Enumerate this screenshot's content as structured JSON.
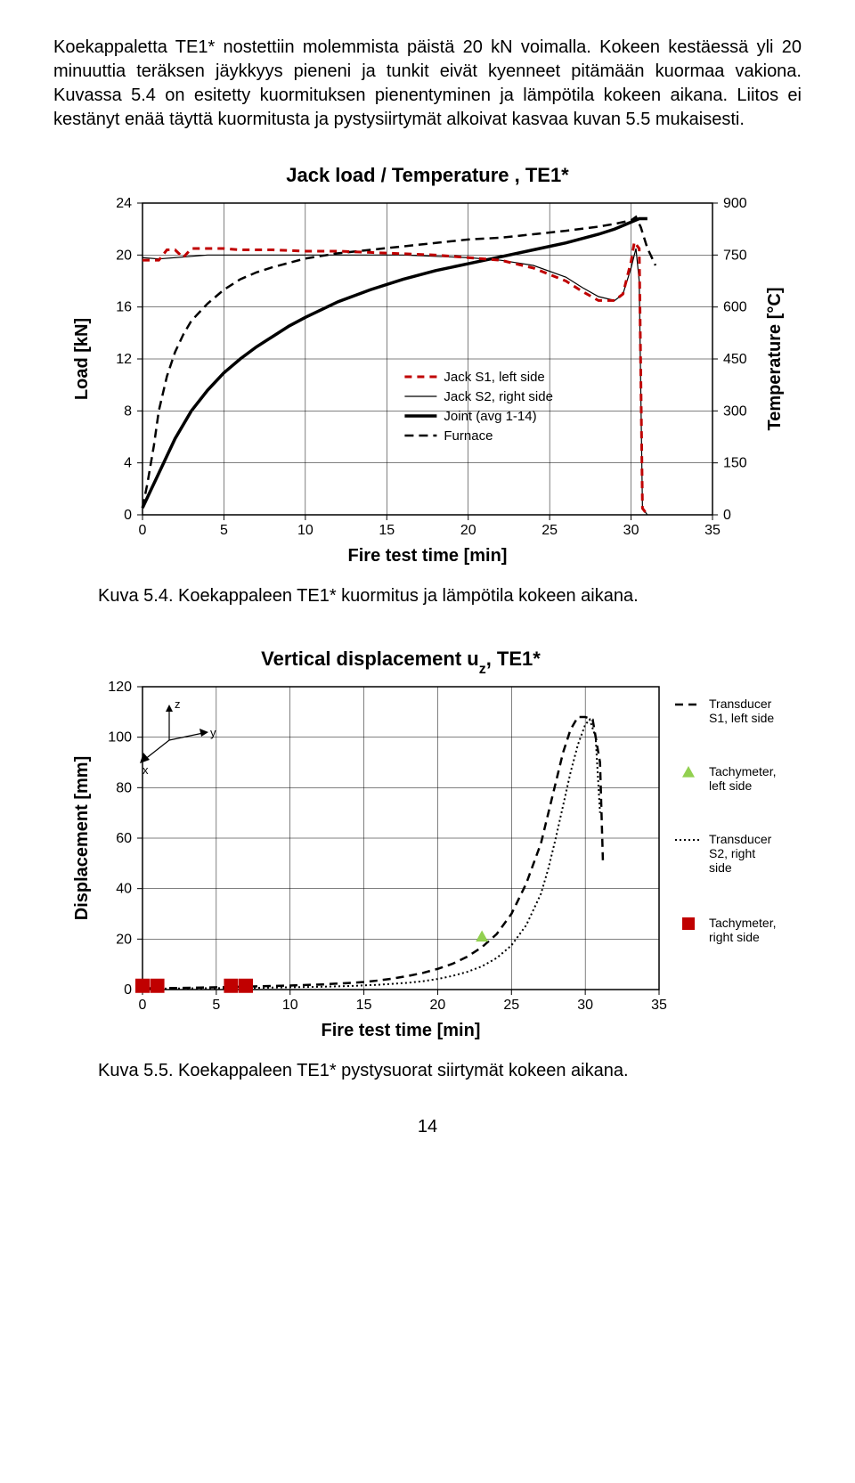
{
  "paragraph": "Koekappaletta TE1* nostettiin molemmista päistä 20 kN voimalla. Kokeen kestäessä yli 20 minuuttia teräksen jäykkyys pieneni ja tunkit eivät kyenneet pitämään kuormaa vakiona. Kuvassa 5.4 on esitetty kuormituksen pienentyminen ja lämpötila kokeen aikana. Liitos ei kestänyt enää täyttä kuormitusta ja pystysiirtymät alkoivat kasvaa kuvan 5.5 mukaisesti.",
  "chart1": {
    "title": "Jack load / Temperature , TE1*",
    "xlabel": "Fire test time [min]",
    "ylabel_left": "Load [kN]",
    "ylabel_right": "Temperature [°C]",
    "xlim": [
      0,
      35
    ],
    "ylim_left": [
      0,
      24
    ],
    "ylim_right": [
      0,
      900
    ],
    "xticks": [
      0,
      5,
      10,
      15,
      20,
      25,
      30,
      35
    ],
    "yticks_left": [
      0,
      4,
      8,
      12,
      16,
      20,
      24
    ],
    "yticks_right": [
      0,
      150,
      300,
      450,
      600,
      750,
      900
    ],
    "grid_color": "#000000",
    "background": "#ffffff",
    "series": {
      "jack_s1": {
        "label": "Jack S1, left side",
        "color": "#c00000",
        "dash": "8,6",
        "width": 3,
        "data": [
          [
            0,
            19.6
          ],
          [
            0.5,
            19.6
          ],
          [
            1,
            19.6
          ],
          [
            1.5,
            20.4
          ],
          [
            2,
            20.4
          ],
          [
            2.5,
            19.8
          ],
          [
            3,
            20.5
          ],
          [
            3.5,
            20.5
          ],
          [
            4,
            20.5
          ],
          [
            5,
            20.5
          ],
          [
            6,
            20.4
          ],
          [
            7,
            20.4
          ],
          [
            8,
            20.4
          ],
          [
            10,
            20.3
          ],
          [
            12,
            20.3
          ],
          [
            14,
            20.2
          ],
          [
            16,
            20.1
          ],
          [
            18,
            20.0
          ],
          [
            20,
            19.8
          ],
          [
            22,
            19.6
          ],
          [
            24,
            19.0
          ],
          [
            26,
            18.0
          ],
          [
            27,
            17.2
          ],
          [
            28,
            16.5
          ],
          [
            29,
            16.5
          ],
          [
            29.5,
            17.0
          ],
          [
            30,
            19.5
          ],
          [
            30.2,
            21.0
          ],
          [
            30.5,
            20.5
          ],
          [
            30.7,
            0.5
          ],
          [
            31,
            0
          ]
        ]
      },
      "jack_s2": {
        "label": "Jack S2, right side",
        "color": "#000000",
        "dash": "none",
        "width": 1.2,
        "data": [
          [
            0,
            19.8
          ],
          [
            1,
            19.7
          ],
          [
            2,
            19.8
          ],
          [
            3,
            19.9
          ],
          [
            4,
            20.0
          ],
          [
            6,
            20.0
          ],
          [
            8,
            20.0
          ],
          [
            10,
            20.0
          ],
          [
            12,
            20.0
          ],
          [
            14,
            20.0
          ],
          [
            16,
            20.0
          ],
          [
            18,
            19.9
          ],
          [
            20,
            19.8
          ],
          [
            22,
            19.6
          ],
          [
            24,
            19.2
          ],
          [
            26,
            18.3
          ],
          [
            27,
            17.5
          ],
          [
            28,
            16.8
          ],
          [
            29,
            16.5
          ],
          [
            29.5,
            17.0
          ],
          [
            30,
            19.0
          ],
          [
            30.3,
            20.5
          ],
          [
            30.5,
            18.0
          ],
          [
            30.7,
            0.5
          ],
          [
            31,
            0
          ]
        ]
      },
      "joint": {
        "label": "Joint (avg 1-14)",
        "color": "#000000",
        "dash": "none",
        "width": 3.5,
        "right_axis": true,
        "data": [
          [
            0,
            20
          ],
          [
            0.5,
            70
          ],
          [
            1,
            120
          ],
          [
            1.5,
            170
          ],
          [
            2,
            220
          ],
          [
            3,
            300
          ],
          [
            4,
            360
          ],
          [
            5,
            410
          ],
          [
            6,
            450
          ],
          [
            7,
            485
          ],
          [
            8,
            515
          ],
          [
            9,
            545
          ],
          [
            10,
            570
          ],
          [
            12,
            615
          ],
          [
            14,
            650
          ],
          [
            16,
            680
          ],
          [
            18,
            705
          ],
          [
            20,
            725
          ],
          [
            22,
            745
          ],
          [
            24,
            765
          ],
          [
            26,
            785
          ],
          [
            28,
            810
          ],
          [
            29,
            825
          ],
          [
            30,
            845
          ],
          [
            30.5,
            855
          ],
          [
            31,
            855
          ]
        ]
      },
      "furnace": {
        "label": "Furnace",
        "color": "#000000",
        "dash": "10,6",
        "width": 2.5,
        "right_axis": true,
        "data": [
          [
            0,
            20
          ],
          [
            0.3,
            90
          ],
          [
            0.7,
            200
          ],
          [
            1,
            300
          ],
          [
            1.5,
            400
          ],
          [
            2,
            470
          ],
          [
            2.5,
            520
          ],
          [
            3,
            560
          ],
          [
            4,
            610
          ],
          [
            5,
            650
          ],
          [
            6,
            680
          ],
          [
            7,
            700
          ],
          [
            8,
            715
          ],
          [
            10,
            740
          ],
          [
            12,
            755
          ],
          [
            14,
            765
          ],
          [
            16,
            775
          ],
          [
            18,
            785
          ],
          [
            20,
            795
          ],
          [
            22,
            800
          ],
          [
            24,
            810
          ],
          [
            26,
            820
          ],
          [
            28,
            832
          ],
          [
            29,
            840
          ],
          [
            30,
            850
          ],
          [
            30.3,
            860
          ],
          [
            30.6,
            830
          ],
          [
            31,
            770
          ],
          [
            31.5,
            720
          ]
        ]
      }
    }
  },
  "caption1": "Kuva 5.4. Koekappaleen TE1* kuormitus ja lämpötila kokeen aikana.",
  "chart2": {
    "title_prefix": "Vertical displacement u",
    "title_sub": "z",
    "title_suffix": ", TE1*",
    "xlabel": "Fire test time [min]",
    "ylabel": "Displacement [mm]",
    "xlim": [
      0,
      35
    ],
    "ylim": [
      0,
      120
    ],
    "xticks": [
      0,
      5,
      10,
      15,
      20,
      25,
      30,
      35
    ],
    "yticks": [
      0,
      20,
      40,
      60,
      80,
      100,
      120
    ],
    "grid_color": "#000000",
    "background": "#ffffff",
    "axes_labels": {
      "x": "x",
      "y": "y",
      "z": "z"
    },
    "series": {
      "trans_s1": {
        "label": "Transducer S1, left side",
        "color": "#000000",
        "dash": "9,6",
        "width": 2.5,
        "data": [
          [
            0,
            0.5
          ],
          [
            2,
            0.6
          ],
          [
            4,
            0.8
          ],
          [
            6,
            1.0
          ],
          [
            8,
            1.3
          ],
          [
            10,
            1.6
          ],
          [
            12,
            2.0
          ],
          [
            14,
            2.6
          ],
          [
            15,
            3.0
          ],
          [
            16,
            3.6
          ],
          [
            17,
            4.4
          ],
          [
            18,
            5.4
          ],
          [
            19,
            6.6
          ],
          [
            20,
            8.2
          ],
          [
            21,
            10.2
          ],
          [
            22,
            13.0
          ],
          [
            23,
            16.8
          ],
          [
            24,
            22.0
          ],
          [
            25,
            30.0
          ],
          [
            26,
            42.0
          ],
          [
            27,
            58.0
          ],
          [
            27.5,
            70.0
          ],
          [
            28,
            82.0
          ],
          [
            28.5,
            94.0
          ],
          [
            29,
            103.0
          ],
          [
            29.5,
            108.0
          ],
          [
            30,
            108.0
          ],
          [
            30.5,
            107.0
          ],
          [
            31,
            90.0
          ],
          [
            31.2,
            50.0
          ]
        ]
      },
      "trans_s2": {
        "label": "Transducer S2, right side",
        "color": "#000000",
        "dash": "2,3",
        "width": 2,
        "data": [
          [
            0,
            0.3
          ],
          [
            2,
            0.4
          ],
          [
            4,
            0.5
          ],
          [
            6,
            0.6
          ],
          [
            8,
            0.7
          ],
          [
            10,
            0.9
          ],
          [
            12,
            1.1
          ],
          [
            14,
            1.4
          ],
          [
            16,
            1.9
          ],
          [
            18,
            2.7
          ],
          [
            19,
            3.3
          ],
          [
            20,
            4.2
          ],
          [
            21,
            5.4
          ],
          [
            22,
            7.0
          ],
          [
            23,
            9.2
          ],
          [
            24,
            12.5
          ],
          [
            25,
            17.5
          ],
          [
            26,
            25.5
          ],
          [
            27,
            38.0
          ],
          [
            27.5,
            48.0
          ],
          [
            28,
            60.0
          ],
          [
            28.5,
            73.0
          ],
          [
            29,
            86.0
          ],
          [
            29.5,
            97.0
          ],
          [
            30,
            105.0
          ],
          [
            30.3,
            107.0
          ],
          [
            30.7,
            100.0
          ],
          [
            31,
            70.0
          ]
        ]
      },
      "tach_left": {
        "label": "Tachymeter, left side",
        "color": "#92d050",
        "marker": "triangle",
        "size": 7,
        "data": [
          [
            0,
            1.5
          ],
          [
            6,
            1.5
          ],
          [
            23,
            21
          ]
        ]
      },
      "tach_right": {
        "label": "Tachymeter, right side",
        "color": "#c00000",
        "marker": "square",
        "size": 8,
        "data": [
          [
            0,
            1.5
          ],
          [
            1,
            1.5
          ],
          [
            6,
            1.5
          ],
          [
            7,
            1.5
          ]
        ]
      }
    }
  },
  "caption2": "Kuva 5.5. Koekappaleen TE1* pystysuorat siirtymät kokeen aikana.",
  "page_number": "14"
}
